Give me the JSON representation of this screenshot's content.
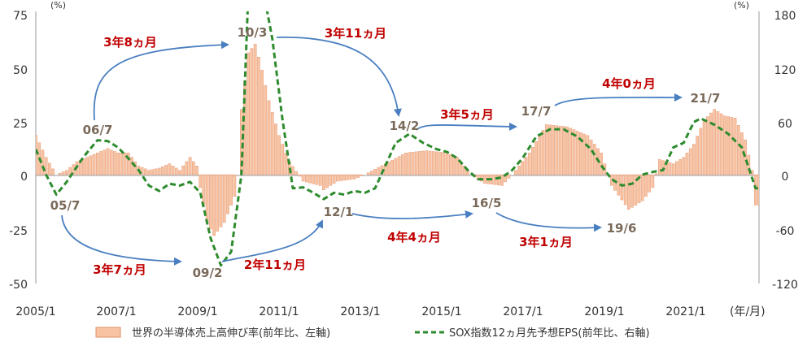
{
  "chart_data": {
    "type": "bar",
    "title": "",
    "x_axis": {
      "ticks": [
        "2005/1",
        "2007/1",
        "2009/1",
        "2011/1",
        "2013/1",
        "2015/1",
        "2017/1",
        "2019/1",
        "2021/1"
      ],
      "unit_label": "(年/月)",
      "range": [
        "2005/1",
        "2022/7"
      ]
    },
    "y_left": {
      "unit_label": "(%)",
      "ticks": [
        "75",
        "50",
        "25",
        "0",
        "-25",
        "-50"
      ],
      "ylim": [
        -50,
        75
      ]
    },
    "y_right": {
      "unit_label": "(%)",
      "ticks": [
        "180",
        "120",
        "60",
        "0",
        "-60",
        "-120"
      ],
      "ylim": [
        -120,
        180
      ]
    },
    "legend": {
      "position": "bottom",
      "bar_label": "世界の半導体売上高伸び率(前年比、左軸)",
      "line_label": "SOX指数12ヵ月先予想EPS(前年比、右軸)"
    },
    "series": [
      {
        "name": "世界の半導体売上高伸び率(前年比、左軸)",
        "type": "bar",
        "axis": "left",
        "color": "#f8c3a3",
        "anchors": [
          [
            "2005-01",
            18
          ],
          [
            "2005-04",
            8
          ],
          [
            "2005-07",
            0
          ],
          [
            "2005-10",
            2
          ],
          [
            "2006-01",
            6
          ],
          [
            "2006-04",
            8
          ],
          [
            "2006-07",
            10
          ],
          [
            "2006-10",
            12
          ],
          [
            "2007-01",
            10
          ],
          [
            "2007-04",
            10
          ],
          [
            "2007-07",
            4
          ],
          [
            "2007-10",
            2
          ],
          [
            "2008-01",
            3
          ],
          [
            "2008-04",
            5
          ],
          [
            "2008-07",
            2
          ],
          [
            "2008-10",
            8
          ],
          [
            "2008-12",
            4
          ],
          [
            "2009-01",
            -6
          ],
          [
            "2009-03",
            -22
          ],
          [
            "2009-05",
            -28
          ],
          [
            "2009-08",
            -22
          ],
          [
            "2009-11",
            -10
          ],
          [
            "2009-12",
            0
          ],
          [
            "2010-01",
            30
          ],
          [
            "2010-03",
            56
          ],
          [
            "2010-05",
            60
          ],
          [
            "2010-07",
            48
          ],
          [
            "2010-09",
            34
          ],
          [
            "2010-12",
            18
          ],
          [
            "2011-03",
            6
          ],
          [
            "2011-07",
            -3
          ],
          [
            "2011-12",
            -5
          ],
          [
            "2012-01",
            -7
          ],
          [
            "2012-05",
            -3
          ],
          [
            "2012-10",
            -2
          ],
          [
            "2013-01",
            0
          ],
          [
            "2013-07",
            5
          ],
          [
            "2014-01",
            10
          ],
          [
            "2014-07",
            11
          ],
          [
            "2015-01",
            10
          ],
          [
            "2015-04",
            8
          ],
          [
            "2015-08",
            0
          ],
          [
            "2015-12",
            -4
          ],
          [
            "2016-05",
            -5
          ],
          [
            "2016-08",
            0
          ],
          [
            "2017-01",
            10
          ],
          [
            "2017-06",
            23
          ],
          [
            "2017-12",
            22
          ],
          [
            "2018-06",
            18
          ],
          [
            "2018-10",
            10
          ],
          [
            "2019-01",
            -5
          ],
          [
            "2019-06",
            -16
          ],
          [
            "2019-10",
            -12
          ],
          [
            "2020-01",
            -6
          ],
          [
            "2020-03",
            7
          ],
          [
            "2020-07",
            5
          ],
          [
            "2020-10",
            8
          ],
          [
            "2021-01",
            14
          ],
          [
            "2021-04",
            25
          ],
          [
            "2021-07",
            30
          ],
          [
            "2021-10",
            27
          ],
          [
            "2022-01",
            26
          ],
          [
            "2022-04",
            16
          ],
          [
            "2022-06",
            2
          ],
          [
            "2022-07",
            -14
          ]
        ]
      },
      {
        "name": "SOX指数12ヵ月先予想EPS(前年比、右軸)",
        "type": "line",
        "axis": "right",
        "color": "#2e8b2e",
        "style": "dashed",
        "anchors": [
          [
            "2005-01",
            28
          ],
          [
            "2005-04",
            0
          ],
          [
            "2005-07",
            -22
          ],
          [
            "2005-10",
            -8
          ],
          [
            "2006-03",
            20
          ],
          [
            "2006-07",
            38
          ],
          [
            "2006-10",
            37
          ],
          [
            "2007-01",
            30
          ],
          [
            "2007-04",
            18
          ],
          [
            "2007-07",
            5
          ],
          [
            "2007-10",
            -12
          ],
          [
            "2008-01",
            -18
          ],
          [
            "2008-04",
            -10
          ],
          [
            "2008-07",
            -12
          ],
          [
            "2008-10",
            -8
          ],
          [
            "2009-01",
            -20
          ],
          [
            "2009-04",
            -70
          ],
          [
            "2009-07",
            -100
          ],
          [
            "2009-10",
            -85
          ],
          [
            "2010-01",
            0
          ],
          [
            "2010-03",
            200
          ],
          [
            "2010-07",
            210
          ],
          [
            "2010-10",
            150
          ],
          [
            "2011-01",
            60
          ],
          [
            "2011-04",
            -15
          ],
          [
            "2011-07",
            -14
          ],
          [
            "2011-10",
            -20
          ],
          [
            "2012-01",
            -27
          ],
          [
            "2012-04",
            -20
          ],
          [
            "2012-07",
            -22
          ],
          [
            "2012-10",
            -18
          ],
          [
            "2013-01",
            -20
          ],
          [
            "2013-04",
            -15
          ],
          [
            "2013-07",
            10
          ],
          [
            "2013-10",
            35
          ],
          [
            "2014-02",
            45
          ],
          [
            "2014-06",
            35
          ],
          [
            "2014-10",
            28
          ],
          [
            "2015-01",
            25
          ],
          [
            "2015-04",
            18
          ],
          [
            "2015-07",
            5
          ],
          [
            "2015-10",
            -5
          ],
          [
            "2016-02",
            -5
          ],
          [
            "2016-05",
            -3
          ],
          [
            "2016-08",
            5
          ],
          [
            "2016-11",
            18
          ],
          [
            "2017-03",
            42
          ],
          [
            "2017-07",
            50
          ],
          [
            "2017-11",
            50
          ],
          [
            "2018-03",
            42
          ],
          [
            "2018-07",
            28
          ],
          [
            "2018-10",
            10
          ],
          [
            "2019-01",
            -5
          ],
          [
            "2019-04",
            -12
          ],
          [
            "2019-07",
            -10
          ],
          [
            "2019-10",
            0
          ],
          [
            "2020-01",
            3
          ],
          [
            "2020-04",
            5
          ],
          [
            "2020-07",
            30
          ],
          [
            "2020-10",
            35
          ],
          [
            "2021-01",
            58
          ],
          [
            "2021-03",
            62
          ],
          [
            "2021-07",
            55
          ],
          [
            "2021-11",
            45
          ],
          [
            "2022-03",
            30
          ],
          [
            "2022-07",
            -15
          ]
        ]
      }
    ],
    "annotations": {
      "dates": [
        {
          "text": "06/7",
          "date": "2006-07",
          "value": 55,
          "axis": "right"
        },
        {
          "text": "05/7",
          "date": "2005-07",
          "value": -35,
          "axis": "right"
        },
        {
          "text": "10/3",
          "date": "2010-03",
          "value": 165,
          "axis": "right"
        },
        {
          "text": "09/2",
          "date": "2009-02",
          "value": -120,
          "axis": "right"
        },
        {
          "text": "12/1",
          "date": "2012-01",
          "value": -42,
          "axis": "right"
        },
        {
          "text": "14/2",
          "date": "2014-02",
          "value": 60,
          "axis": "right"
        },
        {
          "text": "16/5",
          "date": "2016-05",
          "value": -30,
          "axis": "right"
        },
        {
          "text": "17/7",
          "date": "2017-07",
          "value": 75,
          "axis": "right"
        },
        {
          "text": "19/6",
          "date": "2019-06",
          "value": -65,
          "axis": "right"
        },
        {
          "text": "21/7",
          "date": "2021-07",
          "value": 90,
          "axis": "right"
        }
      ],
      "durations": [
        "3年8ヵ月",
        "3年7ヵ月",
        "3年11ヵ月",
        "2年11ヵ月",
        "3年5ヵ月",
        "4年4ヵ月",
        "4年0ヵ月",
        "3年1ヵ月"
      ]
    }
  }
}
